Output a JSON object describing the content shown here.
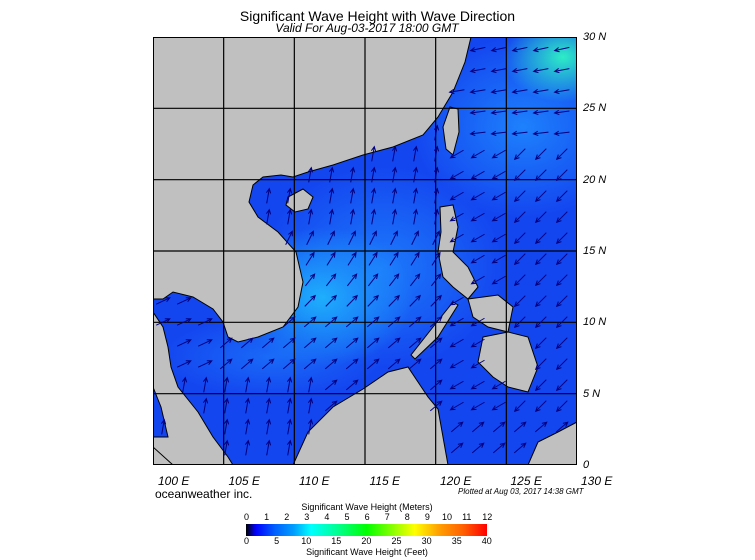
{
  "header": {
    "title": "Significant Wave Height with Wave Direction",
    "subtitle": "Valid For Aug-03-2017 18:00 GMT"
  },
  "map": {
    "lat_labels": [
      "30 N",
      "25 N",
      "20 N",
      "15 N",
      "10 N",
      "5 N",
      "0"
    ],
    "lon_labels": [
      "100 E",
      "105 E",
      "110 E",
      "115 E",
      "120 E",
      "125 E",
      "130 E"
    ],
    "extent": {
      "lon": [
        100,
        130
      ],
      "lat": [
        0,
        30
      ]
    },
    "land_color": "#c0c0c0",
    "arrow_color": "#000080"
  },
  "footer": {
    "credit": "oceanweather inc.",
    "plotted": "Plotted at Aug 03, 2017 14:38 GMT"
  },
  "colorbar": {
    "meters_title": "Significant Wave Height (Meters)",
    "feet_title": "Significant Wave Height (Feet)",
    "meters_ticks": [
      "0",
      "1",
      "2",
      "3",
      "4",
      "5",
      "6",
      "7",
      "8",
      "9",
      "10",
      "11",
      "12"
    ],
    "feet_ticks": [
      "0",
      "5",
      "10",
      "15",
      "20",
      "25",
      "30",
      "35",
      "40"
    ]
  }
}
